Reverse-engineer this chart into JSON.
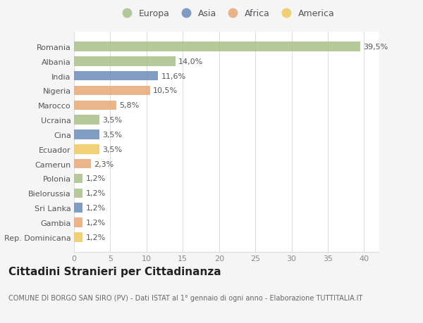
{
  "categories": [
    "Romania",
    "Albania",
    "India",
    "Nigeria",
    "Marocco",
    "Ucraina",
    "Cina",
    "Ecuador",
    "Camerun",
    "Polonia",
    "Bielorussia",
    "Sri Lanka",
    "Gambia",
    "Rep. Dominicana"
  ],
  "values": [
    39.5,
    14.0,
    11.6,
    10.5,
    5.8,
    3.5,
    3.5,
    3.5,
    2.3,
    1.2,
    1.2,
    1.2,
    1.2,
    1.2
  ],
  "labels": [
    "39,5%",
    "14,0%",
    "11,6%",
    "10,5%",
    "5,8%",
    "3,5%",
    "3,5%",
    "3,5%",
    "2,3%",
    "1,2%",
    "1,2%",
    "1,2%",
    "1,2%",
    "1,2%"
  ],
  "continents": [
    "Europa",
    "Europa",
    "Asia",
    "Africa",
    "Africa",
    "Europa",
    "Asia",
    "America",
    "Africa",
    "Europa",
    "Europa",
    "Asia",
    "Africa",
    "America"
  ],
  "continent_colors": {
    "Europa": "#a8c08a",
    "Asia": "#6b8cba",
    "Africa": "#e8a878",
    "America": "#f0c860"
  },
  "legend_order": [
    "Europa",
    "Asia",
    "Africa",
    "America"
  ],
  "title": "Cittadini Stranieri per Cittadinanza",
  "subtitle": "COMUNE DI BORGO SAN SIRO (PV) - Dati ISTAT al 1° gennaio di ogni anno - Elaborazione TUTTITALIA.IT",
  "xlim": [
    0,
    42
  ],
  "xticks": [
    0,
    5,
    10,
    15,
    20,
    25,
    30,
    35,
    40
  ],
  "background_color": "#f5f5f5",
  "plot_bg_color": "#ffffff",
  "grid_color": "#dddddd",
  "title_fontsize": 11,
  "subtitle_fontsize": 7,
  "label_fontsize": 8,
  "tick_fontsize": 8,
  "legend_fontsize": 9
}
